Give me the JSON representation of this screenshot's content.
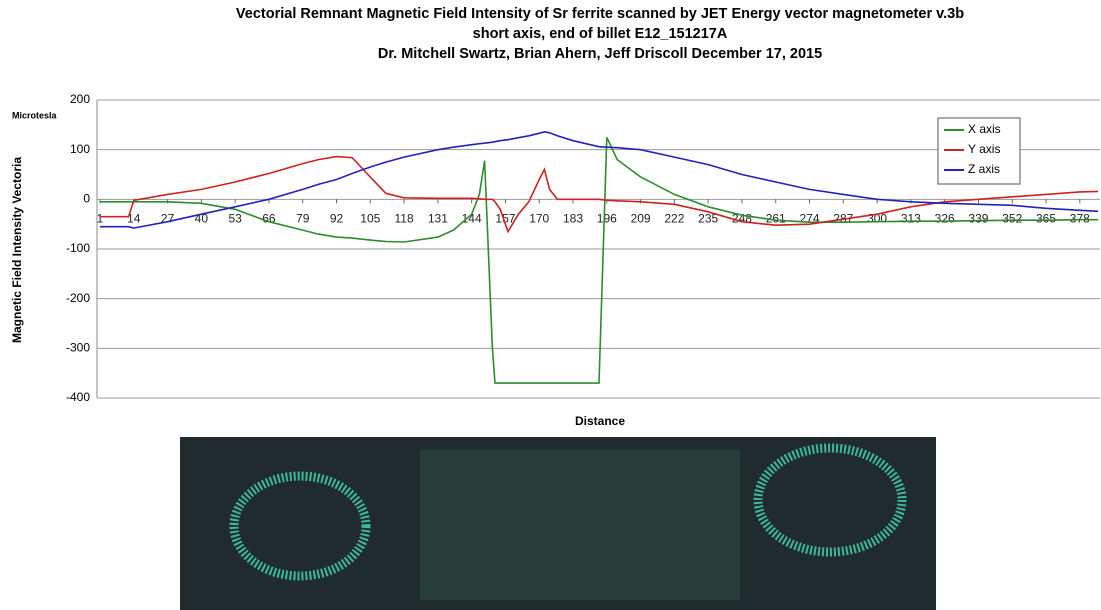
{
  "chart_data": {
    "type": "line",
    "title": "Vectorial Remnant Magnetic Field Intensity of Sr ferrite  scanned by JET Energy vector magnetometer v.3b",
    "subtitle": "short axis, end of billet E12_151217A",
    "subtitle2": "Dr. Mitchell Swartz, Brian Ahern, Jeff Driscoll  December 17, 2015",
    "y_unit": "Microtesla",
    "ylabel": "Magnetic Field Intensity Vectoria",
    "xlabel": "Distance",
    "x": [
      1,
      12,
      14,
      27,
      40,
      53,
      66,
      79,
      85,
      92,
      98,
      105,
      111,
      118,
      131,
      137,
      144,
      147,
      149,
      152,
      153,
      155,
      158,
      162,
      166,
      170,
      172,
      174,
      177,
      183,
      193,
      196,
      200,
      209,
      222,
      235,
      248,
      261,
      274,
      287,
      300,
      313,
      326,
      339,
      352,
      365,
      378,
      385
    ],
    "series": [
      {
        "name": "X axis",
        "color": "#2e8b2e",
        "values": [
          -5,
          -5,
          -5,
          -5,
          -8,
          -20,
          -45,
          -62,
          -70,
          -76,
          -78,
          -82,
          -85,
          -86,
          -76,
          -62,
          -30,
          10,
          78,
          -300,
          -370,
          -370,
          -370,
          -370,
          -370,
          -370,
          -370,
          -370,
          -370,
          -370,
          -370,
          125,
          80,
          45,
          10,
          -15,
          -32,
          -42,
          -46,
          -46,
          -45,
          -44,
          -44,
          -43,
          -42,
          -42,
          -41,
          -41
        ]
      },
      {
        "name": "Y axis",
        "color": "#cc2222",
        "values": [
          -35,
          -35,
          -2,
          10,
          20,
          35,
          52,
          72,
          80,
          86,
          84,
          45,
          12,
          3,
          2,
          2,
          2,
          1,
          0,
          0,
          -5,
          -20,
          -65,
          -30,
          -5,
          40,
          60,
          20,
          0,
          0,
          0,
          -2,
          -3,
          -5,
          -10,
          -25,
          -45,
          -52,
          -50,
          -40,
          -30,
          -15,
          -5,
          0,
          5,
          10,
          15,
          16
        ]
      },
      {
        "name": "Z axis",
        "color": "#2222bb",
        "values": [
          -55,
          -55,
          -58,
          -45,
          -30,
          -15,
          0,
          20,
          30,
          40,
          52,
          65,
          75,
          85,
          100,
          105,
          110,
          112,
          113,
          115,
          116,
          118,
          120,
          124,
          128,
          133,
          136,
          134,
          128,
          118,
          106,
          105,
          104,
          100,
          85,
          70,
          50,
          35,
          20,
          10,
          0,
          -5,
          -8,
          -10,
          -12,
          -18,
          -22,
          -24
        ]
      }
    ],
    "xlim": [
      1,
      385
    ],
    "xticks": [
      1,
      14,
      27,
      40,
      53,
      66,
      79,
      92,
      105,
      118,
      131,
      144,
      157,
      170,
      183,
      196,
      209,
      222,
      235,
      248,
      261,
      274,
      287,
      300,
      313,
      326,
      339,
      352,
      365,
      378
    ],
    "ylim": [
      -400,
      200
    ],
    "yticks": [
      -400,
      -300,
      -200,
      -100,
      0,
      100,
      200
    ],
    "grid": true,
    "legend": "upper right"
  }
}
